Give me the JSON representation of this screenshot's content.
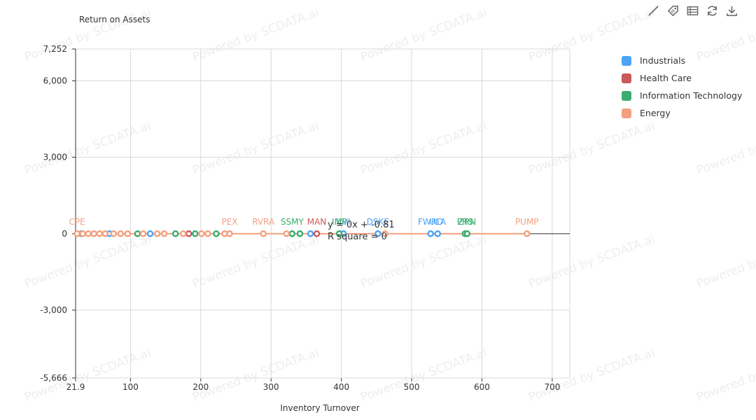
{
  "toolbar": [
    {
      "name": "line-icon",
      "label": "Line"
    },
    {
      "name": "tag-icon",
      "label": "Label"
    },
    {
      "name": "table-icon",
      "label": "Data view"
    },
    {
      "name": "refresh-icon",
      "label": "Restore"
    },
    {
      "name": "download-icon",
      "label": "Save as image"
    }
  ],
  "watermark": "Powered by SCDATA.ai",
  "colors": {
    "Industrials": "#4da3f5",
    "Health Care": "#c85a5a",
    "Information Technology": "#3aac6e",
    "Energy": "#f4a07e",
    "grid": "#d9d9d9",
    "axis": "#333333"
  },
  "chart_data": {
    "type": "scatter",
    "title": "",
    "xlabel": "Inventory Turnover",
    "ylabel": "Return on Assets",
    "xlim": [
      21.9,
      725
    ],
    "ylim": [
      -5666,
      7252
    ],
    "x_ticks": [
      "21.9",
      "100",
      "200",
      "300",
      "400",
      "500",
      "600",
      "700"
    ],
    "y_ticks": [
      "7,252",
      "6,000",
      "3,000",
      "0",
      "-3,000",
      "-5,666"
    ],
    "grid": true,
    "legend_position": "top-right",
    "regression": {
      "equation": "y = 0x + -0.81",
      "r_square": "R square = 0",
      "series": "Energy"
    },
    "series": [
      {
        "name": "Industrials",
        "points": [
          {
            "x": 30,
            "y": 0,
            "label": ""
          },
          {
            "x": 70,
            "y": 0,
            "label": ""
          },
          {
            "x": 128,
            "y": 0,
            "label": ""
          },
          {
            "x": 356,
            "y": 0,
            "label": ""
          },
          {
            "x": 403,
            "y": 0,
            "label": "VVI"
          },
          {
            "x": 452,
            "y": 0,
            "label": "DSKE"
          },
          {
            "x": 527,
            "y": 0,
            "label": "FWRD"
          },
          {
            "x": 537,
            "y": 0,
            "label": "ULA"
          }
        ]
      },
      {
        "name": "Health Care",
        "points": [
          {
            "x": 183,
            "y": 0,
            "label": ""
          },
          {
            "x": 365,
            "y": 0,
            "label": "MAN"
          }
        ]
      },
      {
        "name": "Information Technology",
        "points": [
          {
            "x": 110,
            "y": 0,
            "label": ""
          },
          {
            "x": 164,
            "y": 0,
            "label": ""
          },
          {
            "x": 192,
            "y": 0,
            "label": ""
          },
          {
            "x": 222,
            "y": 0,
            "label": ""
          },
          {
            "x": 330,
            "y": 0,
            "label": "SSMY"
          },
          {
            "x": 341,
            "y": 0,
            "label": ""
          },
          {
            "x": 397,
            "y": 0,
            "label": "IMP"
          },
          {
            "x": 576,
            "y": 0,
            "label": "PRS"
          },
          {
            "x": 579,
            "y": 0,
            "label": "ZRN"
          }
        ]
      },
      {
        "name": "Energy",
        "points": [
          {
            "x": 24,
            "y": 0,
            "label": "CPE"
          },
          {
            "x": 32,
            "y": 0,
            "label": ""
          },
          {
            "x": 40,
            "y": 0,
            "label": ""
          },
          {
            "x": 48,
            "y": 0,
            "label": ""
          },
          {
            "x": 56,
            "y": 0,
            "label": ""
          },
          {
            "x": 64,
            "y": 0,
            "label": ""
          },
          {
            "x": 76,
            "y": 0,
            "label": ""
          },
          {
            "x": 86,
            "y": 0,
            "label": ""
          },
          {
            "x": 96,
            "y": 0,
            "label": ""
          },
          {
            "x": 118,
            "y": 0,
            "label": ""
          },
          {
            "x": 138,
            "y": 0,
            "label": ""
          },
          {
            "x": 148,
            "y": 0,
            "label": ""
          },
          {
            "x": 175,
            "y": 0,
            "label": ""
          },
          {
            "x": 201,
            "y": 0,
            "label": ""
          },
          {
            "x": 210,
            "y": 0,
            "label": ""
          },
          {
            "x": 234,
            "y": 0,
            "label": ""
          },
          {
            "x": 241,
            "y": 0,
            "label": "PEX"
          },
          {
            "x": 289,
            "y": 0,
            "label": "RVRA"
          },
          {
            "x": 322,
            "y": 0,
            "label": ""
          },
          {
            "x": 462,
            "y": 0,
            "label": ""
          },
          {
            "x": 664,
            "y": 0,
            "label": "PUMP"
          }
        ]
      }
    ]
  }
}
